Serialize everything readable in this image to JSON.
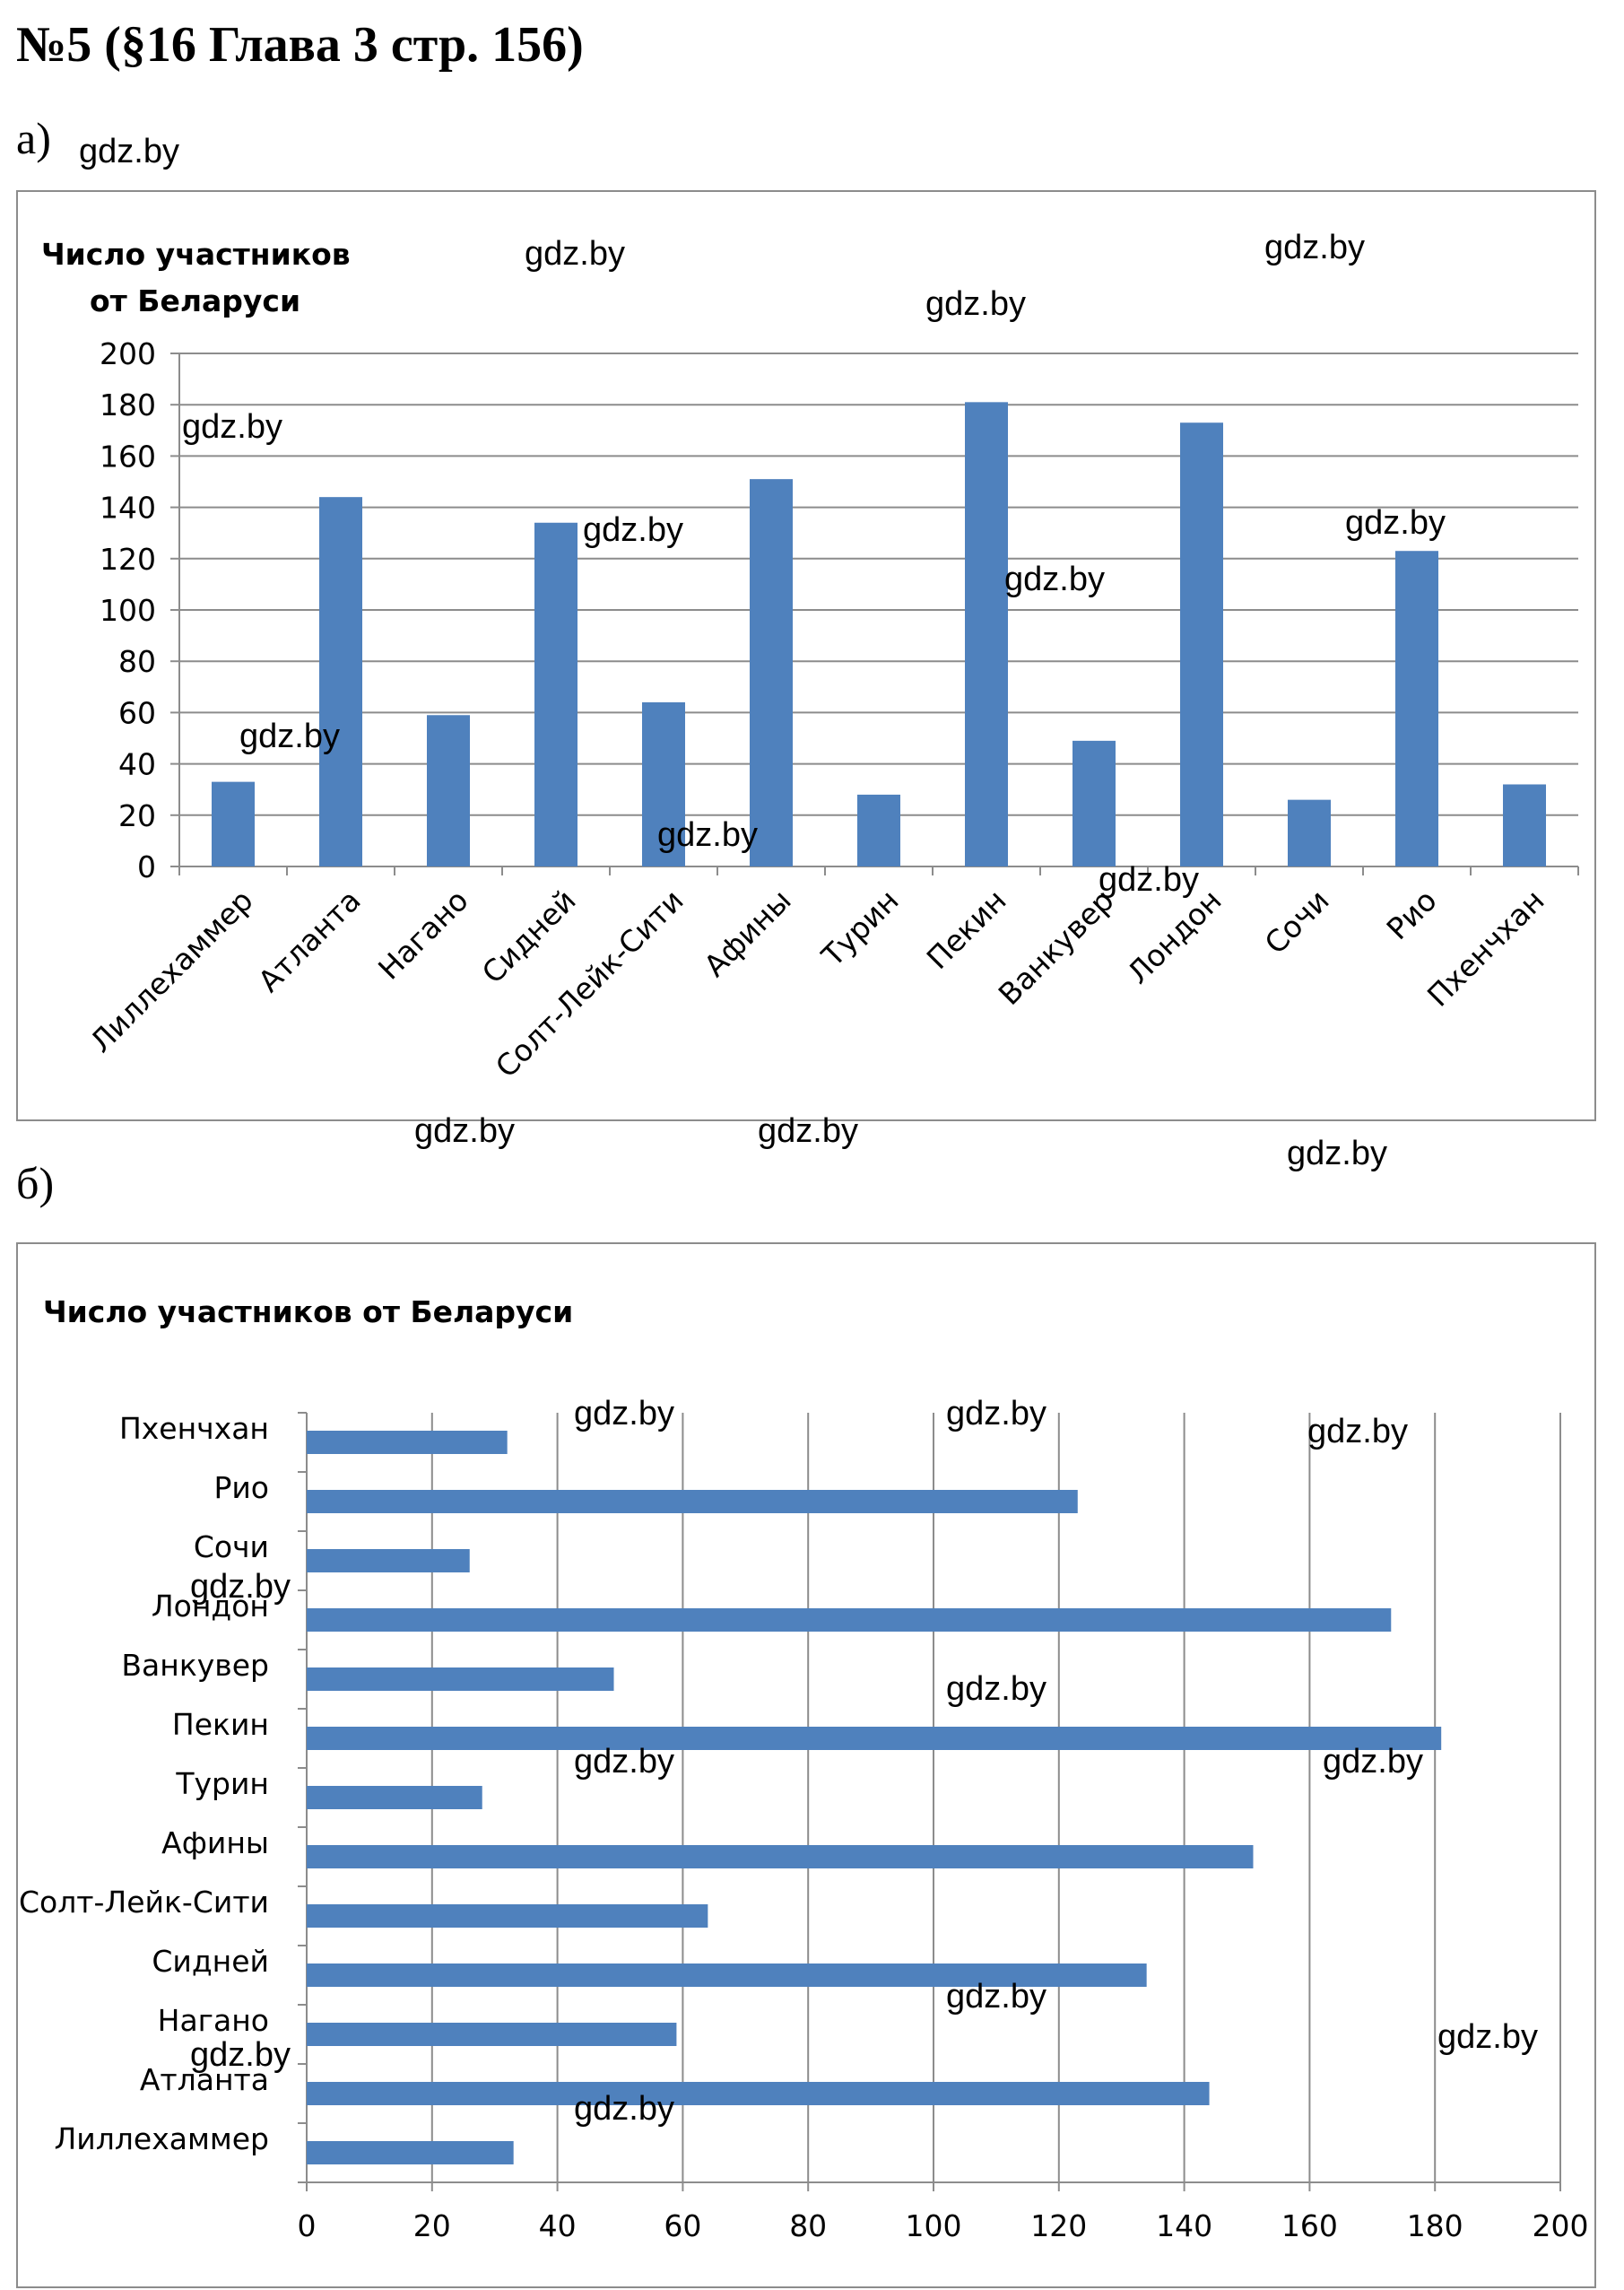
{
  "header": {
    "title": "№5 (§16 Глава 3 стр. 156)"
  },
  "parts": {
    "a": "а)",
    "b": "б)"
  },
  "watermark": "gdz.by",
  "chart_data": [
    {
      "type": "bar",
      "title": "Число участников от Беларуси",
      "title_lines": [
        "Число участников",
        "от Беларуси"
      ],
      "categories": [
        "Лиллехаммер",
        "Атланта",
        "Нагано",
        "Сидней",
        "Солт-Лейк-Сити",
        "Афины",
        "Турин",
        "Пекин",
        "Ванкувер",
        "Лондон",
        "Сочи",
        "Рио",
        "Пхенчхан"
      ],
      "values": [
        33,
        144,
        59,
        134,
        64,
        151,
        28,
        181,
        49,
        173,
        26,
        123,
        32
      ],
      "ylim": [
        0,
        200
      ],
      "yticks": [
        "0",
        "20",
        "40",
        "60",
        "80",
        "100",
        "120",
        "140",
        "160",
        "180",
        "200"
      ],
      "grid": true,
      "color": "#4f81bd"
    },
    {
      "type": "bar",
      "orientation": "horizontal",
      "title": "Число участников от Беларуси",
      "categories": [
        "Лиллехаммер",
        "Атланта",
        "Нагано",
        "Сидней",
        "Солт-Лейк-Сити",
        "Афины",
        "Турин",
        "Пекин",
        "Ванкувер",
        "Лондон",
        "Сочи",
        "Рио",
        "Пхенчхан"
      ],
      "values": [
        33,
        144,
        59,
        134,
        64,
        151,
        28,
        181,
        49,
        173,
        26,
        123,
        32
      ],
      "xlim": [
        0,
        200
      ],
      "xticks": [
        "0",
        "20",
        "40",
        "60",
        "80",
        "100",
        "120",
        "140",
        "160",
        "180",
        "200"
      ],
      "grid": true,
      "color": "#4f81bd"
    }
  ]
}
